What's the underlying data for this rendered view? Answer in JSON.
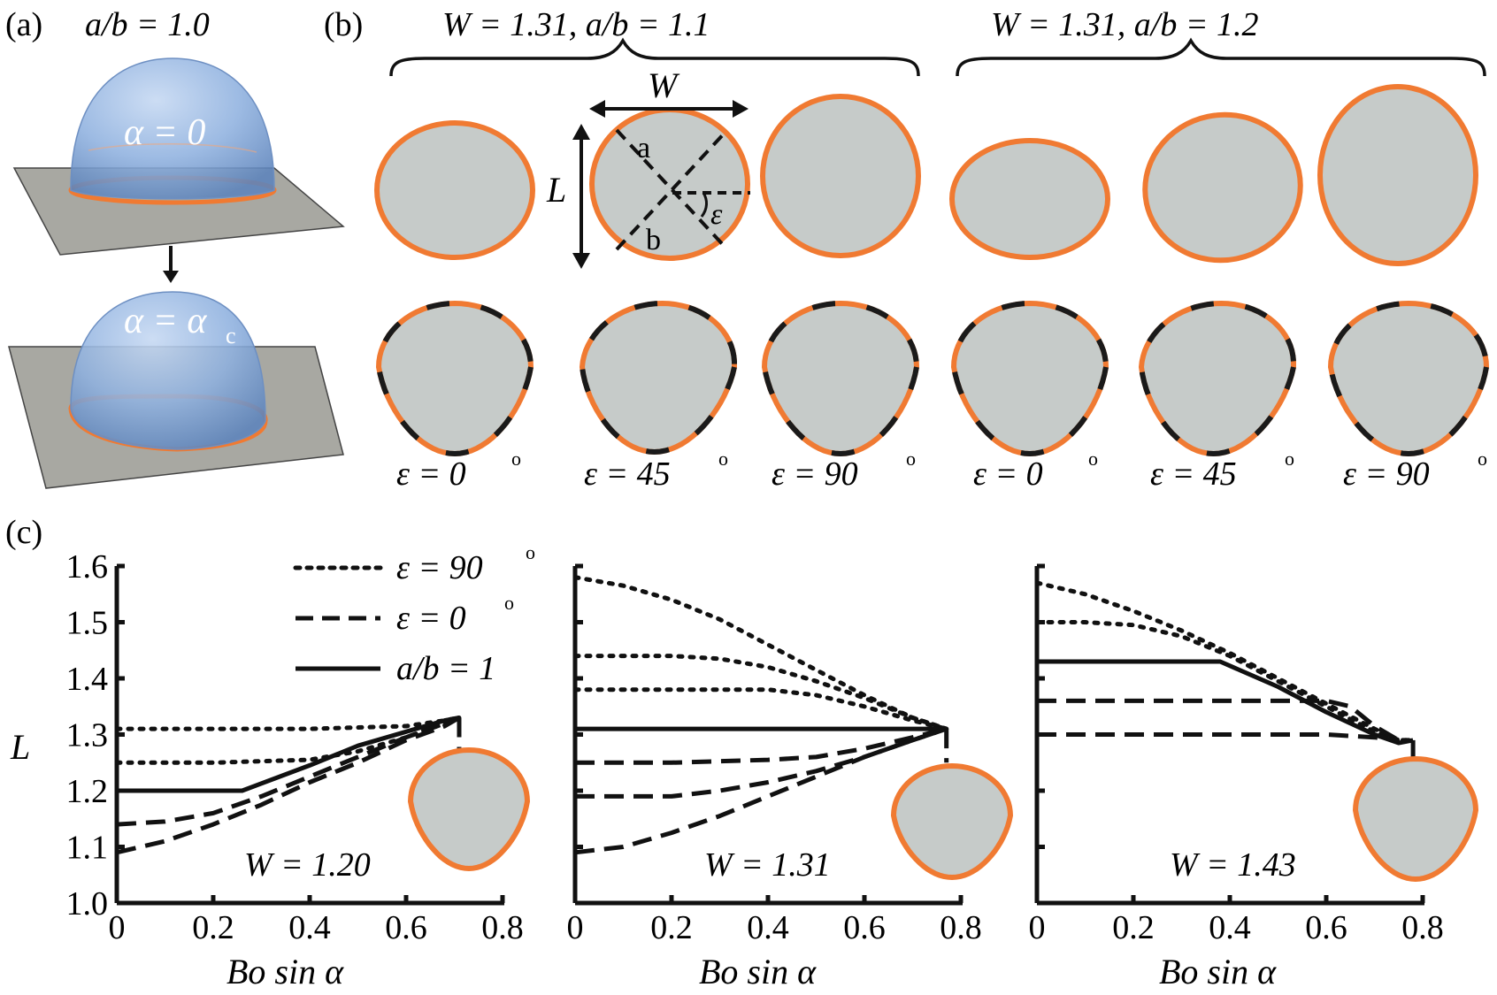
{
  "colors": {
    "contour": "#f07a32",
    "fill": "#c6cbc9",
    "ink": "#111111"
  },
  "panel_a": {
    "label": "(a)",
    "ratio_label": "a/b = 1.0",
    "top_angle": "α = 0",
    "bottom_angle": "α = α",
    "bottom_angle_sub": "c"
  },
  "panel_b": {
    "label": "(b)",
    "group_left": "W = 1.31,  a/b = 1.1",
    "group_right": "W = 1.31,  a/b = 1.2",
    "annot_w": "W",
    "annot_l": "L",
    "annot_a": "a",
    "annot_b": "b",
    "annot_eps": "ε",
    "eps_labels": [
      "ε = 0",
      "ε = 45",
      "ε = 90",
      "ε = 0",
      "ε = 45",
      "ε = 90"
    ],
    "deg": "o"
  },
  "panel_c": {
    "label": "(c)",
    "ylabel": "L",
    "xlabel": "Bo sin α",
    "legend": [
      "ε = 90",
      "ε = 0",
      "a/b = 1"
    ],
    "legend_deg": "o",
    "w_labels": [
      "W = 1.20",
      "W = 1.31",
      "W = 1.43"
    ]
  },
  "chart_data": [
    {
      "type": "line",
      "title": "W = 1.20",
      "xlabel": "Bo sin α",
      "ylabel": "L",
      "xlim": [
        0,
        0.8
      ],
      "ylim": [
        1.0,
        1.6
      ],
      "xticks": [
        "0",
        "0.2",
        "0.4",
        "0.6",
        "0.8"
      ],
      "yticks": [
        "1.0",
        "1.1",
        "1.2",
        "1.3",
        "1.4",
        "1.5",
        "1.6"
      ],
      "legend_position": "top-left",
      "series": [
        {
          "name": "ε = 90°",
          "style": "dotted",
          "x": [
            0,
            0.2,
            0.4,
            0.6,
            0.68,
            0.71
          ],
          "y": [
            1.31,
            1.31,
            1.31,
            1.315,
            1.325,
            1.33
          ]
        },
        {
          "style": "dotted",
          "x": [
            0,
            0.2,
            0.4,
            0.5,
            0.6,
            0.68,
            0.71
          ],
          "y": [
            1.25,
            1.25,
            1.255,
            1.27,
            1.295,
            1.32,
            1.33
          ]
        },
        {
          "name": "a/b = 1",
          "style": "solid",
          "x": [
            0,
            0.1,
            0.26,
            0.4,
            0.5,
            0.6,
            0.68,
            0.71
          ],
          "y": [
            1.2,
            1.2,
            1.2,
            1.245,
            1.28,
            1.305,
            1.325,
            1.33
          ]
        },
        {
          "name": "ε = 0°",
          "style": "dashed",
          "x": [
            0,
            0.1,
            0.2,
            0.3,
            0.4,
            0.5,
            0.6,
            0.68,
            0.71
          ],
          "y": [
            1.14,
            1.145,
            1.16,
            1.19,
            1.225,
            1.26,
            1.295,
            1.32,
            1.33
          ]
        },
        {
          "style": "dashed",
          "x": [
            0,
            0.1,
            0.2,
            0.3,
            0.4,
            0.5,
            0.6,
            0.68,
            0.71
          ],
          "y": [
            1.09,
            1.11,
            1.14,
            1.175,
            1.215,
            1.25,
            1.29,
            1.315,
            1.33
          ]
        },
        {
          "style": "dashed",
          "x": [
            0.71,
            0.71
          ],
          "y": [
            1.33,
            1.27
          ]
        }
      ]
    },
    {
      "type": "line",
      "title": "W = 1.31",
      "xlabel": "Bo sin α",
      "ylabel": "L",
      "xlim": [
        0,
        0.8
      ],
      "ylim": [
        1.0,
        1.6
      ],
      "xticks": [
        "0",
        "0.2",
        "0.4",
        "0.6",
        "0.8"
      ],
      "series": [
        {
          "style": "dotted",
          "x": [
            0,
            0.1,
            0.2,
            0.3,
            0.4,
            0.5,
            0.6,
            0.7,
            0.77
          ],
          "y": [
            1.58,
            1.565,
            1.54,
            1.505,
            1.46,
            1.415,
            1.37,
            1.33,
            1.31
          ]
        },
        {
          "style": "dotted",
          "x": [
            0,
            0.2,
            0.3,
            0.4,
            0.5,
            0.6,
            0.7,
            0.77
          ],
          "y": [
            1.44,
            1.44,
            1.435,
            1.42,
            1.395,
            1.365,
            1.33,
            1.31
          ]
        },
        {
          "style": "dotted",
          "x": [
            0,
            0.2,
            0.4,
            0.5,
            0.6,
            0.7,
            0.77
          ],
          "y": [
            1.38,
            1.38,
            1.38,
            1.37,
            1.35,
            1.325,
            1.31
          ]
        },
        {
          "style": "solid",
          "x": [
            0,
            0.2,
            0.4,
            0.6,
            0.7,
            0.77
          ],
          "y": [
            1.31,
            1.31,
            1.31,
            1.31,
            1.31,
            1.31
          ]
        },
        {
          "style": "dashed",
          "x": [
            0,
            0.2,
            0.4,
            0.5,
            0.6,
            0.7,
            0.77
          ],
          "y": [
            1.25,
            1.25,
            1.255,
            1.26,
            1.275,
            1.295,
            1.31
          ]
        },
        {
          "style": "dashed",
          "x": [
            0,
            0.2,
            0.3,
            0.4,
            0.5,
            0.6,
            0.7,
            0.77
          ],
          "y": [
            1.19,
            1.19,
            1.2,
            1.215,
            1.235,
            1.26,
            1.29,
            1.31
          ]
        },
        {
          "style": "dashed",
          "x": [
            0,
            0.1,
            0.2,
            0.3,
            0.4,
            0.5,
            0.6,
            0.7,
            0.77
          ],
          "y": [
            1.09,
            1.1,
            1.125,
            1.155,
            1.19,
            1.225,
            1.26,
            1.29,
            1.31
          ]
        },
        {
          "style": "dashed",
          "x": [
            0.77,
            0.77
          ],
          "y": [
            1.31,
            1.25
          ]
        }
      ]
    },
    {
      "type": "line",
      "title": "W = 1.43",
      "xlabel": "Bo sin α",
      "ylabel": "L",
      "xlim": [
        0,
        0.8
      ],
      "ylim": [
        1.0,
        1.6
      ],
      "xticks": [
        "0",
        "0.2",
        "0.4",
        "0.6",
        "0.8"
      ],
      "series": [
        {
          "style": "dotted",
          "x": [
            0,
            0.1,
            0.2,
            0.3,
            0.4,
            0.5,
            0.6,
            0.7,
            0.75,
            0.78
          ],
          "y": [
            1.57,
            1.55,
            1.52,
            1.485,
            1.445,
            1.4,
            1.355,
            1.31,
            1.29,
            1.29
          ]
        },
        {
          "style": "dotted",
          "x": [
            0,
            0.1,
            0.2,
            0.3,
            0.4,
            0.5,
            0.6,
            0.7,
            0.75,
            0.78
          ],
          "y": [
            1.5,
            1.5,
            1.495,
            1.475,
            1.44,
            1.395,
            1.35,
            1.305,
            1.29,
            1.29
          ]
        },
        {
          "style": "solid",
          "x": [
            0,
            0.1,
            0.2,
            0.3,
            0.38,
            0.5,
            0.6,
            0.7,
            0.75,
            0.78
          ],
          "y": [
            1.43,
            1.43,
            1.43,
            1.43,
            1.43,
            1.385,
            1.34,
            1.3,
            1.285,
            1.29
          ]
        },
        {
          "style": "dashed",
          "x": [
            0,
            0.2,
            0.4,
            0.6,
            0.65,
            0.7,
            0.75
          ],
          "y": [
            1.36,
            1.36,
            1.36,
            1.36,
            1.35,
            1.315,
            1.29
          ]
        },
        {
          "style": "dashed",
          "x": [
            0,
            0.2,
            0.4,
            0.6,
            0.7,
            0.75
          ],
          "y": [
            1.3,
            1.3,
            1.3,
            1.3,
            1.295,
            1.29
          ]
        },
        {
          "style": "dashed",
          "x": [
            0.78,
            0.78
          ],
          "y": [
            1.29,
            1.25
          ]
        }
      ]
    }
  ]
}
